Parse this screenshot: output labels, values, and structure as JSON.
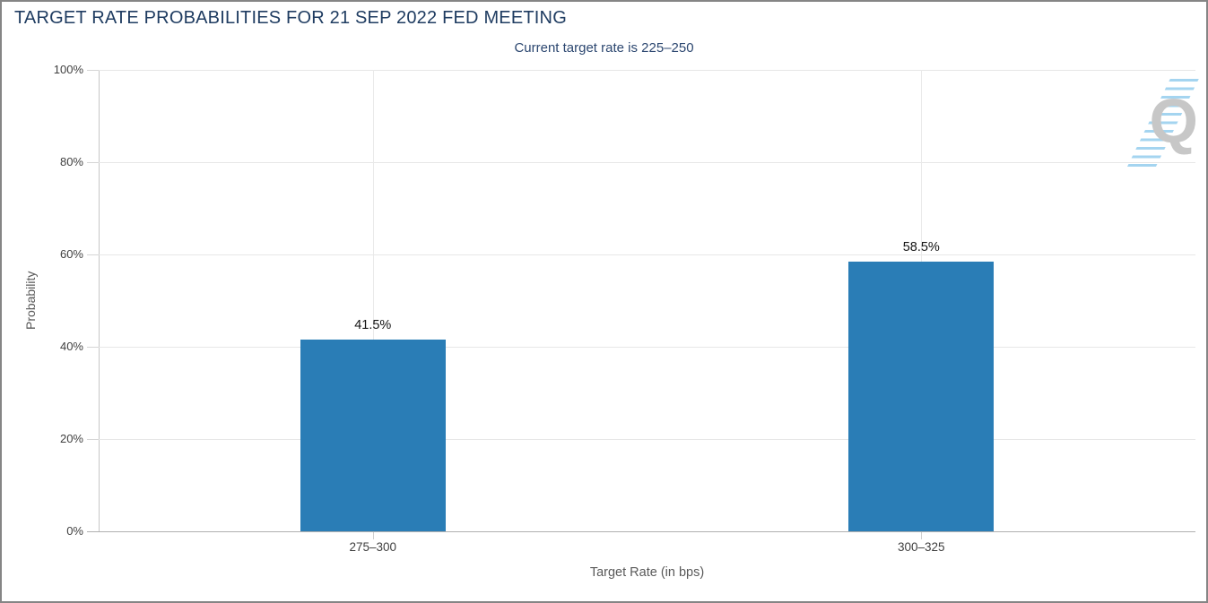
{
  "window": {
    "background": "#ffffff",
    "border_color": "#858585"
  },
  "watermark": {
    "letter": "Q",
    "letter_color": "#c7c7c7",
    "stripe_color": "#8dcaec"
  },
  "chart_data": {
    "type": "bar",
    "title": "TARGET RATE PROBABILITIES FOR 21 SEP 2022 FED MEETING",
    "subtitle": "Current target rate is 225–250",
    "categories": [
      "275–300",
      "300–325"
    ],
    "values": [
      41.5,
      58.5
    ],
    "value_labels": [
      "41.5%",
      "58.5%"
    ],
    "xlabel": "Target Rate (in bps)",
    "ylabel": "Probability",
    "ylim": [
      0,
      100
    ],
    "yticks": [
      0,
      20,
      40,
      60,
      80,
      100
    ],
    "ytick_labels": [
      "0%",
      "20%",
      "40%",
      "60%",
      "80%",
      "100%"
    ],
    "grid": true,
    "legend": false,
    "colors": {
      "bar": "#2a7db6",
      "gridline": "#e7e7e7",
      "axis_line": "#c6c6c6",
      "baseline": "#b0b0b0",
      "tick_label": "#3f3f3f",
      "axis_title": "#595959",
      "value_label": "#141414",
      "title": "#1f3c61",
      "subtitle": "#2c4770"
    }
  }
}
